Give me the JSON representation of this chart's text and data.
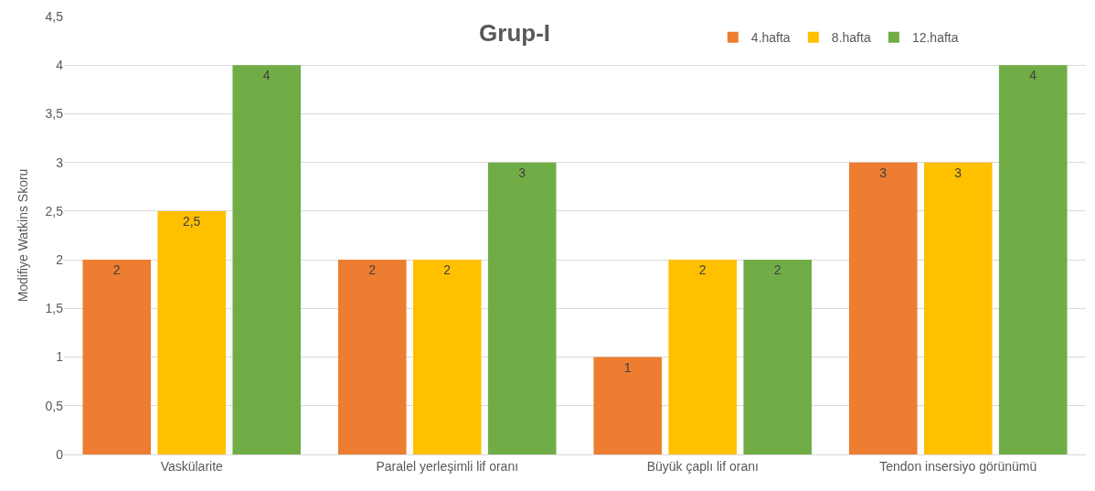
{
  "chart_data": {
    "type": "bar",
    "title": "Grup-I",
    "ylabel": "Modifiye Watkins Skoru",
    "categories": [
      "Vaskülarite",
      "Paralel yerleşimli lif oranı",
      "Büyük çaplı lif oranı",
      "Tendon insersiyo görünümü"
    ],
    "series": [
      {
        "name": "4.hafta",
        "color": "#ed7d31",
        "values": [
          2,
          2,
          1,
          3
        ],
        "value_labels": [
          "2",
          "2",
          "1",
          "3"
        ]
      },
      {
        "name": "8.hafta",
        "color": "#ffc000",
        "values": [
          2.5,
          2,
          2,
          3
        ],
        "value_labels": [
          "2,5",
          "2",
          "2",
          "3"
        ]
      },
      {
        "name": "12.hafta",
        "color": "#70ad47",
        "values": [
          4,
          3,
          2,
          4
        ],
        "value_labels": [
          "4",
          "3",
          "2",
          "4"
        ]
      }
    ],
    "ylim": [
      0,
      4.5
    ],
    "yticks": [
      0,
      {
        "value": 0.5,
        "label": "0,5"
      },
      1,
      {
        "value": 1.5,
        "label": "1,5"
      },
      2,
      {
        "value": 2.5,
        "label": "2,5"
      },
      3,
      {
        "value": 3.5,
        "label": "3,5"
      },
      4,
      {
        "value": 4.5,
        "label": "4,5"
      }
    ],
    "grid": "y",
    "legend": "top right"
  }
}
